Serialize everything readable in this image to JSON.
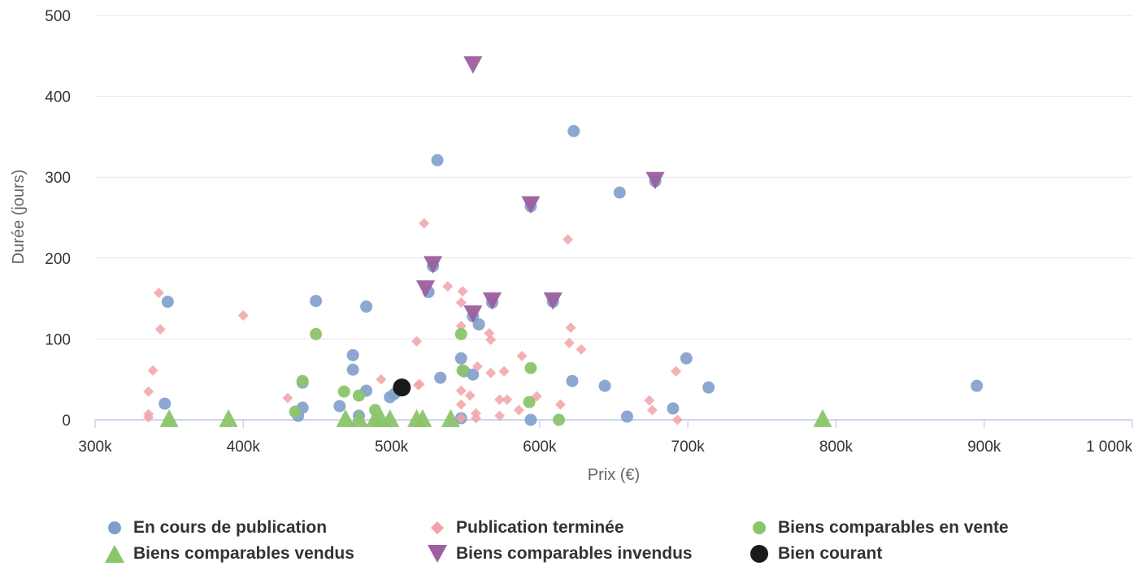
{
  "colors": {
    "en_cours": "#7f9fcb",
    "terminee": "#f2a3a8",
    "en_vente": "#8cc46a",
    "vendus": "#8cc46a",
    "invendus": "#9c5f9f",
    "courant": "#1a1a1a",
    "grid": "#e6e6e6",
    "axis": "#ccd6eb"
  },
  "chart_data": {
    "type": "scatter",
    "xlabel": "Prix (€)",
    "ylabel": "Durée (jours)",
    "xlim": [
      300000,
      1000000
    ],
    "ylim": [
      0,
      500
    ],
    "x_ticks": [
      300000,
      400000,
      500000,
      600000,
      700000,
      800000,
      900000,
      1000000
    ],
    "x_tick_labels": [
      "300k",
      "400k",
      "500k",
      "600k",
      "700k",
      "800k",
      "900k",
      "1 000k"
    ],
    "y_ticks": [
      0,
      100,
      200,
      300,
      400,
      500
    ],
    "y_tick_labels": [
      "0",
      "100",
      "200",
      "300",
      "400",
      "500"
    ],
    "grid": true,
    "legend_position": "bottom",
    "series": [
      {
        "name": "En cours de publication",
        "marker": "circle",
        "color": "#7f9fcb",
        "points": [
          [
            347000,
            20
          ],
          [
            349000,
            146
          ],
          [
            437000,
            5
          ],
          [
            440000,
            15
          ],
          [
            440000,
            46
          ],
          [
            449000,
            147
          ],
          [
            465000,
            17
          ],
          [
            474000,
            80
          ],
          [
            474000,
            62
          ],
          [
            478000,
            5
          ],
          [
            483000,
            140
          ],
          [
            483000,
            36
          ],
          [
            499000,
            28
          ],
          [
            502000,
            32
          ],
          [
            525000,
            158
          ],
          [
            528000,
            190
          ],
          [
            531000,
            321
          ],
          [
            533000,
            52
          ],
          [
            547000,
            76
          ],
          [
            547000,
            2
          ],
          [
            549000,
            60
          ],
          [
            555000,
            128
          ],
          [
            555000,
            56
          ],
          [
            559000,
            118
          ],
          [
            568000,
            145
          ],
          [
            594000,
            264
          ],
          [
            594000,
            0
          ],
          [
            609000,
            146
          ],
          [
            622000,
            48
          ],
          [
            623000,
            357
          ],
          [
            644000,
            42
          ],
          [
            654000,
            281
          ],
          [
            659000,
            4
          ],
          [
            678000,
            295
          ],
          [
            690000,
            14
          ],
          [
            699000,
            76
          ],
          [
            714000,
            40
          ],
          [
            895000,
            42
          ]
        ]
      },
      {
        "name": "Publication terminée",
        "marker": "diamond",
        "color": "#f2a3a8",
        "points": [
          [
            336000,
            3
          ],
          [
            336000,
            7
          ],
          [
            336000,
            35
          ],
          [
            339000,
            61
          ],
          [
            343000,
            157
          ],
          [
            344000,
            112
          ],
          [
            400000,
            129
          ],
          [
            430000,
            27
          ],
          [
            493000,
            50
          ],
          [
            517000,
            97
          ],
          [
            518000,
            43
          ],
          [
            519000,
            44
          ],
          [
            522000,
            243
          ],
          [
            538000,
            165
          ],
          [
            547000,
            145
          ],
          [
            547000,
            116
          ],
          [
            547000,
            36
          ],
          [
            547000,
            19
          ],
          [
            547000,
            2
          ],
          [
            548000,
            159
          ],
          [
            553000,
            30
          ],
          [
            557000,
            8
          ],
          [
            557000,
            2
          ],
          [
            558000,
            66
          ],
          [
            566000,
            107
          ],
          [
            567000,
            58
          ],
          [
            567000,
            99
          ],
          [
            573000,
            25
          ],
          [
            573000,
            5
          ],
          [
            576000,
            60
          ],
          [
            578000,
            25
          ],
          [
            586000,
            12
          ],
          [
            588000,
            79
          ],
          [
            598000,
            29
          ],
          [
            614000,
            19
          ],
          [
            619000,
            223
          ],
          [
            620000,
            95
          ],
          [
            621000,
            114
          ],
          [
            628000,
            87
          ],
          [
            674000,
            24
          ],
          [
            676000,
            12
          ],
          [
            692000,
            60
          ],
          [
            693000,
            0
          ]
        ]
      },
      {
        "name": "Biens comparables en vente",
        "marker": "circle",
        "color": "#8cc46a",
        "points": [
          [
            435000,
            10
          ],
          [
            440000,
            48
          ],
          [
            449000,
            106
          ],
          [
            468000,
            35
          ],
          [
            478000,
            30
          ],
          [
            489000,
            12
          ],
          [
            547000,
            106
          ],
          [
            548000,
            61
          ],
          [
            593000,
            22
          ],
          [
            594000,
            64
          ],
          [
            613000,
            0
          ]
        ]
      },
      {
        "name": "Biens comparables vendus",
        "marker": "triangle",
        "color": "#8cc46a",
        "points": [
          [
            350000,
            0
          ],
          [
            390000,
            0
          ],
          [
            469000,
            0
          ],
          [
            478000,
            0
          ],
          [
            489000,
            0
          ],
          [
            493000,
            0
          ],
          [
            499000,
            0
          ],
          [
            517000,
            0
          ],
          [
            521000,
            0
          ],
          [
            540000,
            0
          ],
          [
            791000,
            0
          ]
        ]
      },
      {
        "name": "Biens comparables invendus",
        "marker": "triangle-down",
        "color": "#9c5f9f",
        "points": [
          [
            555000,
            440
          ],
          [
            528000,
            193
          ],
          [
            523000,
            163
          ],
          [
            555000,
            132
          ],
          [
            568000,
            148
          ],
          [
            594000,
            267
          ],
          [
            609000,
            148
          ],
          [
            678000,
            297
          ]
        ]
      },
      {
        "name": "Bien courant",
        "marker": "circle",
        "color": "#1a1a1a",
        "points": [
          [
            507000,
            40
          ]
        ]
      }
    ]
  }
}
